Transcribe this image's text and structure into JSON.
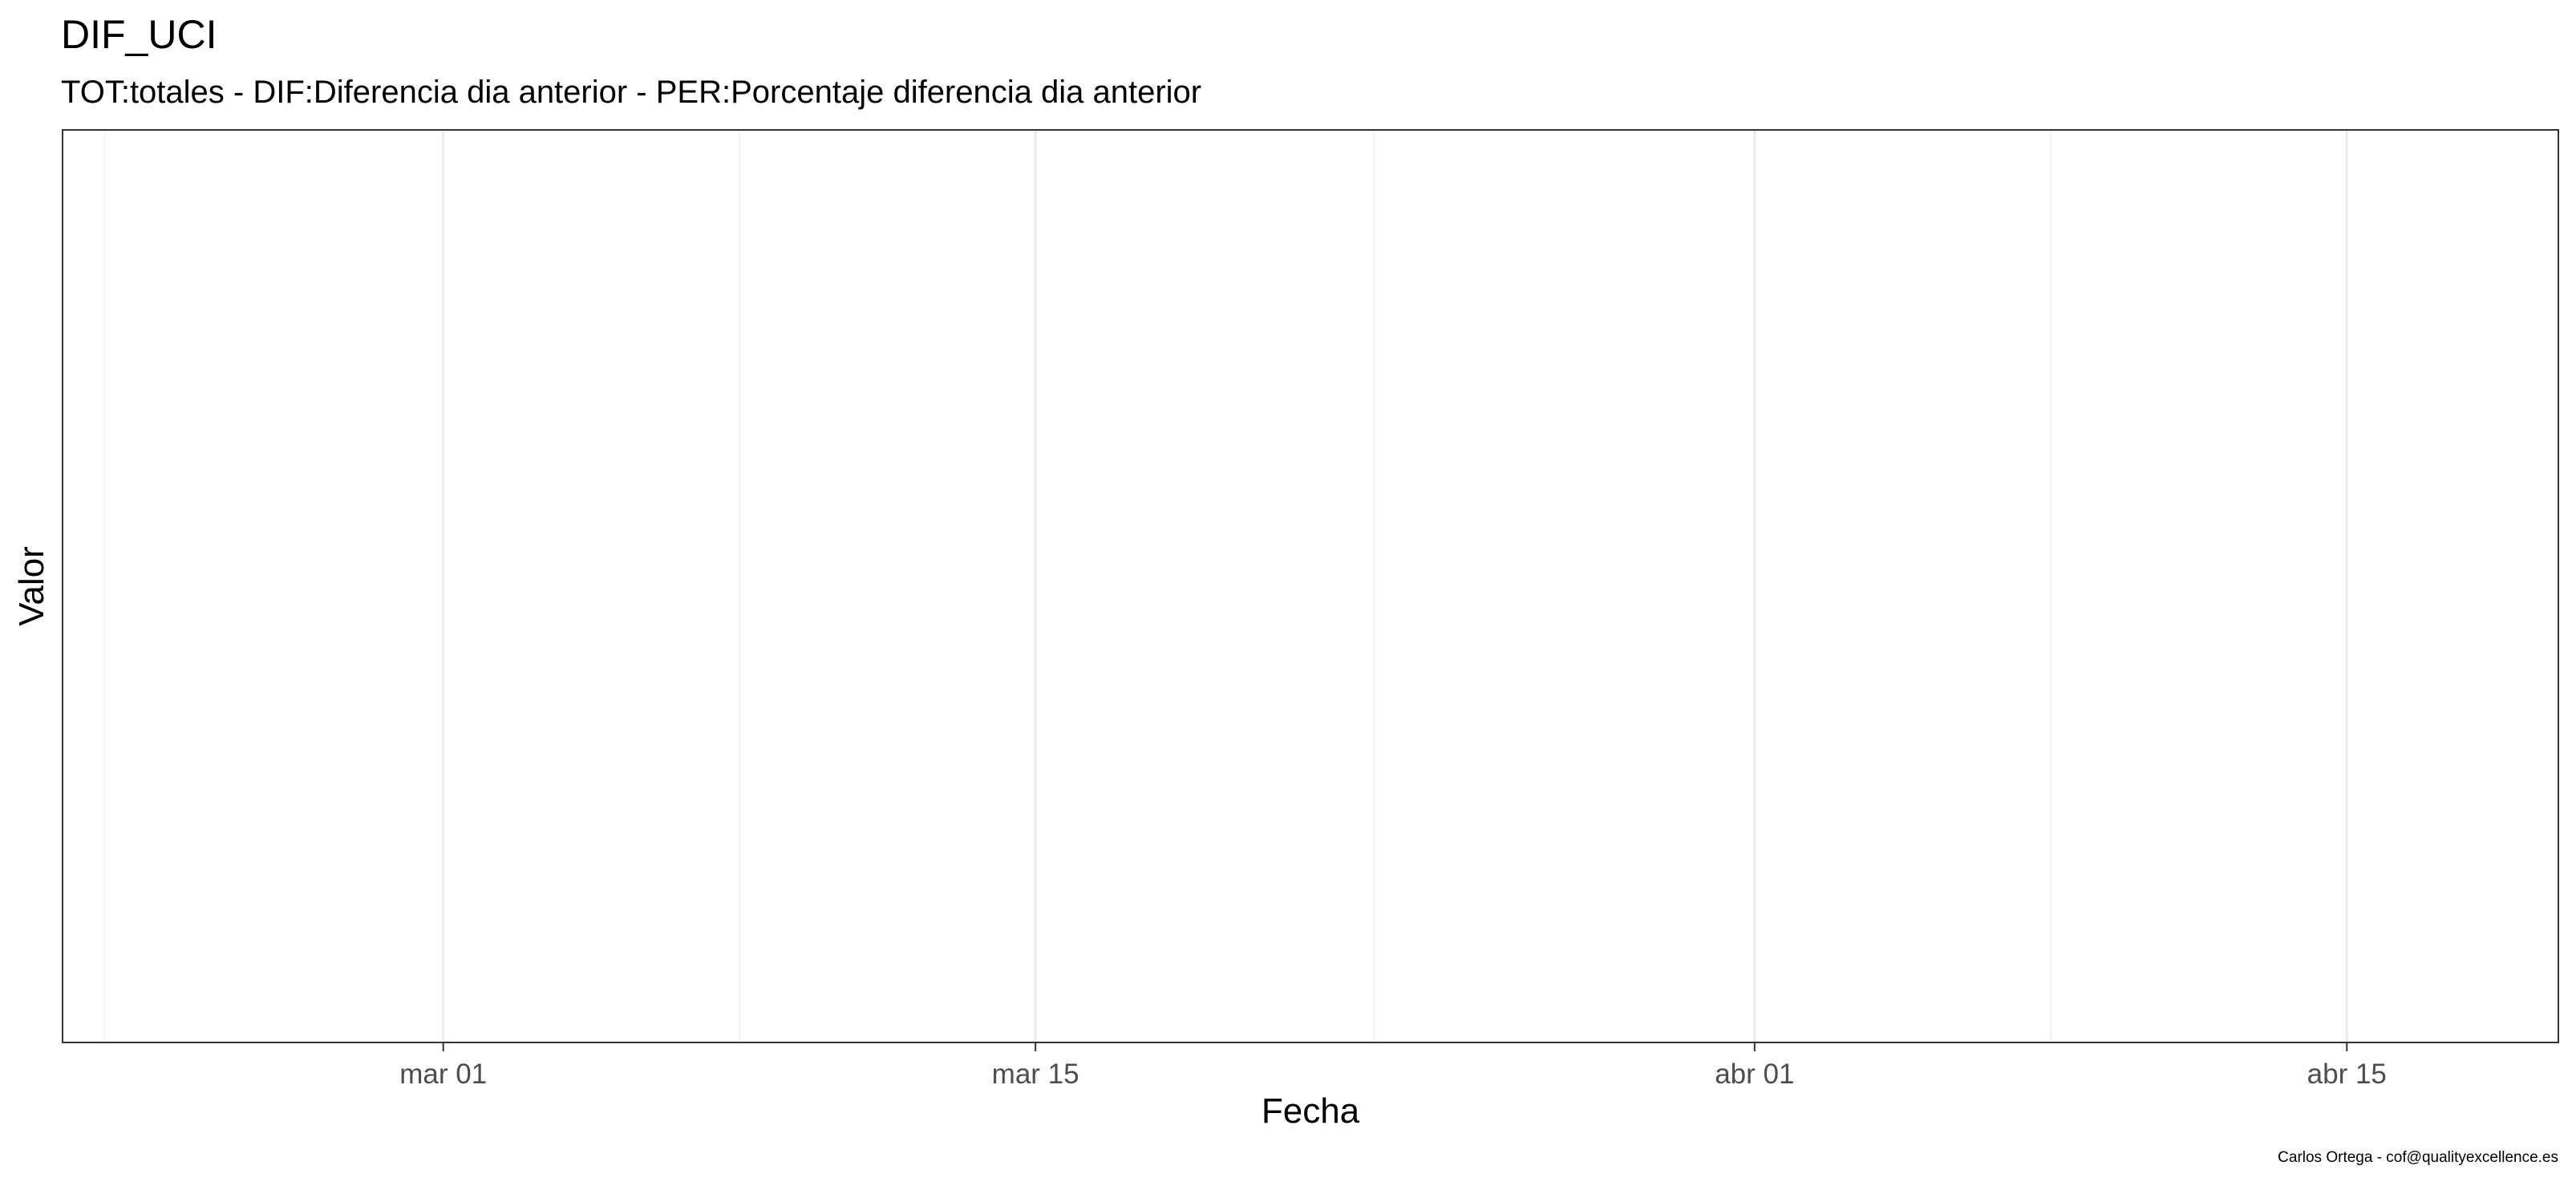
{
  "chart_data": {
    "type": "line",
    "title": "DIF_UCI",
    "subtitle": "TOT:totales - DIF:Diferencia dia anterior - PER:Porcentaje diferencia dia anterior",
    "xlabel": "Fecha",
    "ylabel": "Valor",
    "caption": "Carlos Ortega - cof@qualityexcellence.es",
    "x_type": "date",
    "xlim": [
      "2020-02-21",
      "2020-04-20"
    ],
    "x_ticks": [
      {
        "date": "2020-03-01",
        "label": "mar 01"
      },
      {
        "date": "2020-03-15",
        "label": "mar 15"
      },
      {
        "date": "2020-04-01",
        "label": "abr 01"
      },
      {
        "date": "2020-04-15",
        "label": "abr 15"
      }
    ],
    "x_minor_gridlines": [
      "2020-02-22",
      "2020-03-08",
      "2020-03-23",
      "2020-04-08"
    ],
    "y_ticks": [],
    "series": [],
    "grid": true,
    "legend": "none",
    "colors": {
      "background": "#ffffff",
      "panel_border": "#333333",
      "major_grid": "#ebebeb",
      "minor_grid": "#f4f4f4",
      "tick_label": "#4d4d4d"
    }
  }
}
